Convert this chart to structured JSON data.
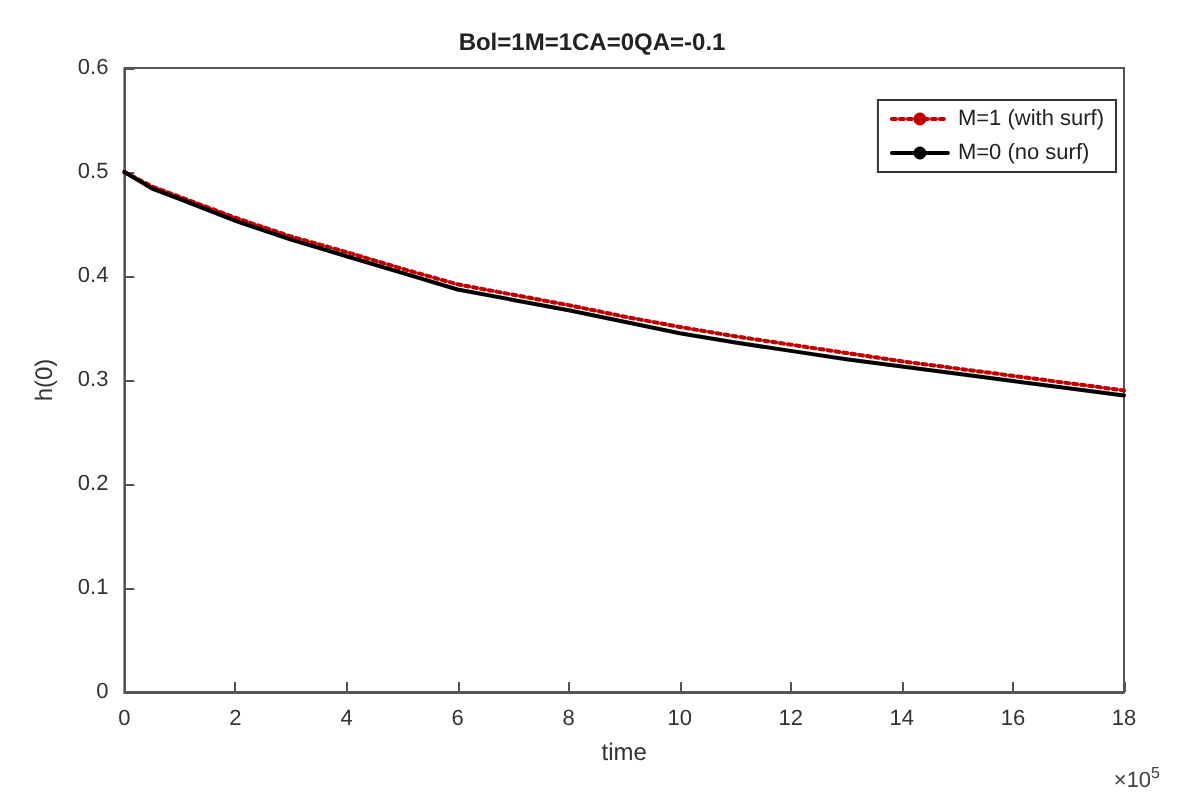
{
  "chart_data": {
    "type": "line",
    "title": "Bol=1M=1CA=0QA=-0.1",
    "xlabel": "time",
    "ylabel": "h(0)",
    "annotations": [
      "×10$^{5}$"
    ],
    "x": [
      0,
      0.5,
      1,
      2,
      3,
      4,
      5,
      6,
      7,
      8,
      9,
      10,
      11,
      12,
      13,
      14,
      15,
      16,
      17,
      18
    ],
    "series": [
      {
        "name": "M=1 (with surf)",
        "color": "#c00000",
        "line_style": "dotted",
        "values": [
          0.5,
          0.486,
          0.476,
          0.456,
          0.438,
          0.423,
          0.407,
          0.392,
          0.382,
          0.372,
          0.361,
          0.351,
          0.342,
          0.334,
          0.326,
          0.318,
          0.311,
          0.304,
          0.297,
          0.29
        ]
      },
      {
        "name": "M=0 (no surf)",
        "color": "#000000",
        "line_style": "solid",
        "values": [
          0.5,
          0.484,
          0.474,
          0.453,
          0.435,
          0.419,
          0.403,
          0.387,
          0.377,
          0.367,
          0.356,
          0.345,
          0.336,
          0.328,
          0.32,
          0.313,
          0.306,
          0.299,
          0.292,
          0.285
        ]
      }
    ],
    "xlim": [
      0,
      18
    ],
    "xticks": [
      0,
      2,
      4,
      6,
      8,
      10,
      12,
      14,
      16,
      18
    ],
    "ylim": [
      0,
      0.6
    ],
    "yticks": [
      0,
      0.1,
      0.2,
      0.3,
      0.4,
      0.5,
      0.6
    ],
    "grid": false,
    "legend": "top right",
    "marker": "none"
  }
}
